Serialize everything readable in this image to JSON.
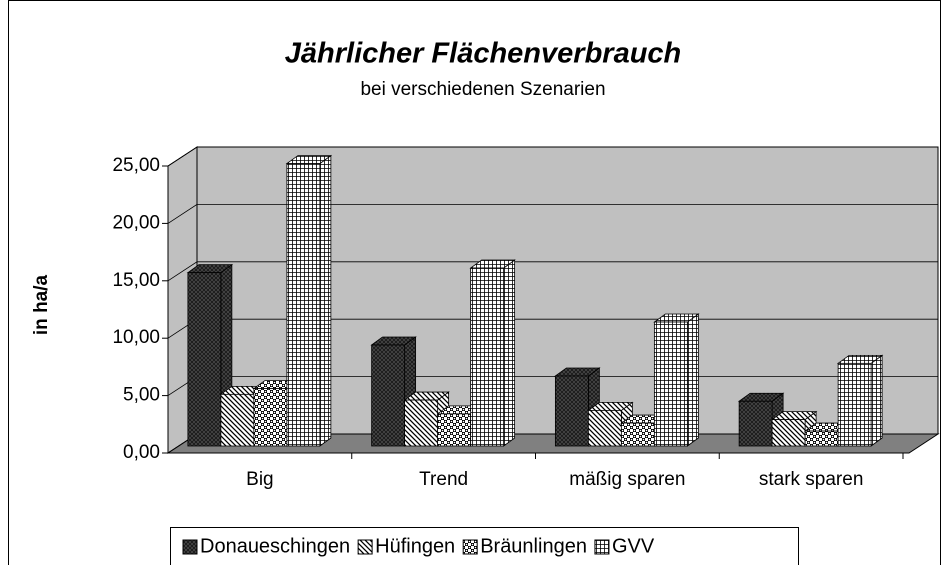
{
  "chart_data": {
    "type": "bar3d",
    "title": "Jährlicher Flächenverbrauch",
    "subtitle": "bei verschiedenen Szenarien",
    "y_label": "in ha/a",
    "categories": [
      "Big",
      "Trend",
      "mäßig sparen",
      "stark sparen"
    ],
    "series": [
      {
        "name": "Donaueschingen",
        "values": [
          15.1,
          8.8,
          6.1,
          3.9
        ]
      },
      {
        "name": "Hüfingen",
        "values": [
          4.5,
          4.0,
          3.1,
          2.3
        ]
      },
      {
        "name": "Bräunlingen",
        "values": [
          5.0,
          2.8,
          2.0,
          1.3
        ]
      },
      {
        "name": "GVV",
        "values": [
          24.6,
          15.5,
          10.8,
          7.2
        ]
      }
    ],
    "ylim": [
      0,
      25
    ],
    "yticks": [
      {
        "value": 0,
        "label": "0,00"
      },
      {
        "value": 5,
        "label": "5,00"
      },
      {
        "value": 10,
        "label": "10,00"
      },
      {
        "value": 15,
        "label": "15,00"
      },
      {
        "value": 20,
        "label": "20,00"
      },
      {
        "value": 25,
        "label": "25,00"
      }
    ],
    "grid": true,
    "legend": "bottom"
  }
}
